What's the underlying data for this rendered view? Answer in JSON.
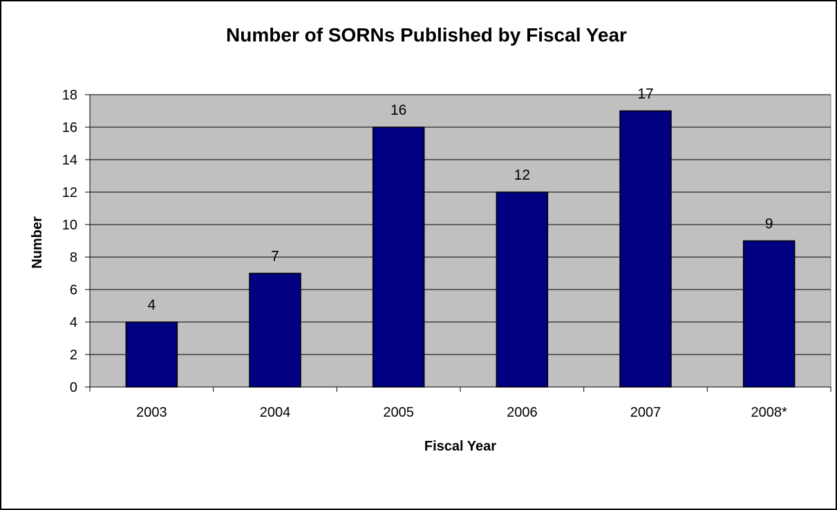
{
  "chart_data": {
    "type": "bar",
    "title": "Number of SORNs Published by Fiscal Year",
    "xlabel": "Fiscal Year",
    "ylabel": "Number",
    "categories": [
      "2003",
      "2004",
      "2005",
      "2006",
      "2007",
      "2008*"
    ],
    "series": [
      {
        "values": [
          4,
          7,
          16,
          12,
          17,
          9
        ]
      }
    ],
    "data_labels": [
      "4",
      "7",
      "16",
      "12",
      "17",
      "9"
    ],
    "ylim": [
      0,
      18
    ],
    "yticks": [
      "0",
      "2",
      "4",
      "6",
      "8",
      "10",
      "12",
      "14",
      "16",
      "18"
    ],
    "ytick_values": [
      0,
      2,
      4,
      6,
      8,
      10,
      12,
      14,
      16,
      18
    ],
    "grid": true,
    "legend": "none",
    "colors": {
      "bar_fill": "#000080",
      "plot_background": "#c0c0c0",
      "gridline": "#000000"
    }
  }
}
